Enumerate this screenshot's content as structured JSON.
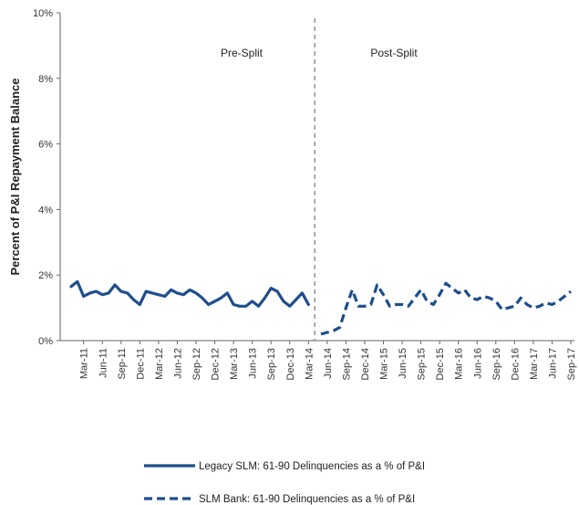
{
  "chart_data": {
    "type": "line",
    "title": "",
    "xlabel": "",
    "ylabel": "Percent of P&I Repayment  Balance",
    "ylim": [
      0,
      10
    ],
    "y_ticks": [
      "0%",
      "2%",
      "4%",
      "6%",
      "8%",
      "10%"
    ],
    "x_start_month": "Jan-11",
    "x_ticks": [
      "Mar-11",
      "Jun-11",
      "Sep-11",
      "Dec-11",
      "Mar-12",
      "Jun-12",
      "Sep-12",
      "Dec-12",
      "Mar-13",
      "Jun-13",
      "Sep-13",
      "Dec-13",
      "Mar-14",
      "Jun-14",
      "Sep-14",
      "Dec-14",
      "Mar-15",
      "Jun-15",
      "Sep-15",
      "Dec-15",
      "Mar-16",
      "Jun-16",
      "Sep-16",
      "Dec-16",
      "Mar-17",
      "Jun-17",
      "Sep-17"
    ],
    "split_month": "Apr-14",
    "annotations": [
      {
        "text": "Pre-Split",
        "side": "left"
      },
      {
        "text": "Post-Split",
        "side": "right"
      }
    ],
    "grid": false,
    "legend_position": "bottom",
    "series": [
      {
        "name": "Legacy SLM: 61-90 Delinquencies as a % of P&I",
        "style": "solid",
        "color": "#1f4e8c",
        "months": [
          "Jan-11",
          "Feb-11",
          "Mar-11",
          "Apr-11",
          "May-11",
          "Jun-11",
          "Jul-11",
          "Aug-11",
          "Sep-11",
          "Oct-11",
          "Nov-11",
          "Dec-11",
          "Jan-12",
          "Feb-12",
          "Mar-12",
          "Apr-12",
          "May-12",
          "Jun-12",
          "Jul-12",
          "Aug-12",
          "Sep-12",
          "Oct-12",
          "Nov-12",
          "Dec-12",
          "Jan-13",
          "Feb-13",
          "Mar-13",
          "Apr-13",
          "May-13",
          "Jun-13",
          "Jul-13",
          "Aug-13",
          "Sep-13",
          "Oct-13",
          "Nov-13",
          "Dec-13",
          "Jan-14",
          "Feb-14",
          "Mar-14"
        ],
        "values": [
          1.65,
          1.8,
          1.35,
          1.45,
          1.5,
          1.4,
          1.45,
          1.7,
          1.5,
          1.45,
          1.25,
          1.1,
          1.5,
          1.45,
          1.4,
          1.35,
          1.55,
          1.45,
          1.4,
          1.55,
          1.45,
          1.3,
          1.1,
          1.2,
          1.3,
          1.45,
          1.1,
          1.05,
          1.05,
          1.2,
          1.05,
          1.3,
          1.6,
          1.5,
          1.2,
          1.05,
          1.25,
          1.45,
          1.1
        ]
      },
      {
        "name": "SLM Bank: 61-90 Delinquencies as a % of P&I",
        "style": "dashed",
        "color": "#1f4e8c",
        "months": [
          "May-14",
          "Jun-14",
          "Jul-14",
          "Aug-14",
          "Sep-14",
          "Oct-14",
          "Nov-14",
          "Dec-14",
          "Jan-15",
          "Feb-15",
          "Mar-15",
          "Apr-15",
          "May-15",
          "Jun-15",
          "Jul-15",
          "Aug-15",
          "Sep-15",
          "Oct-15",
          "Nov-15",
          "Dec-15",
          "Jan-16",
          "Feb-16",
          "Mar-16",
          "Apr-16",
          "May-16",
          "Jun-16",
          "Jul-16",
          "Aug-16",
          "Sep-16",
          "Oct-16",
          "Nov-16",
          "Dec-16",
          "Jan-17",
          "Feb-17",
          "Mar-17",
          "Apr-17",
          "May-17",
          "Jun-17",
          "Jul-17",
          "Aug-17",
          "Sep-17"
        ],
        "values": [
          0.2,
          0.25,
          0.3,
          0.4,
          1.0,
          1.55,
          1.05,
          1.05,
          1.1,
          1.7,
          1.4,
          1.05,
          1.1,
          1.1,
          1.05,
          1.3,
          1.55,
          1.2,
          1.1,
          1.4,
          1.75,
          1.6,
          1.45,
          1.55,
          1.3,
          1.25,
          1.35,
          1.3,
          1.2,
          0.95,
          1.0,
          1.05,
          1.3,
          1.1,
          1.0,
          1.05,
          1.15,
          1.1,
          1.2,
          1.35,
          1.5
        ]
      }
    ]
  }
}
